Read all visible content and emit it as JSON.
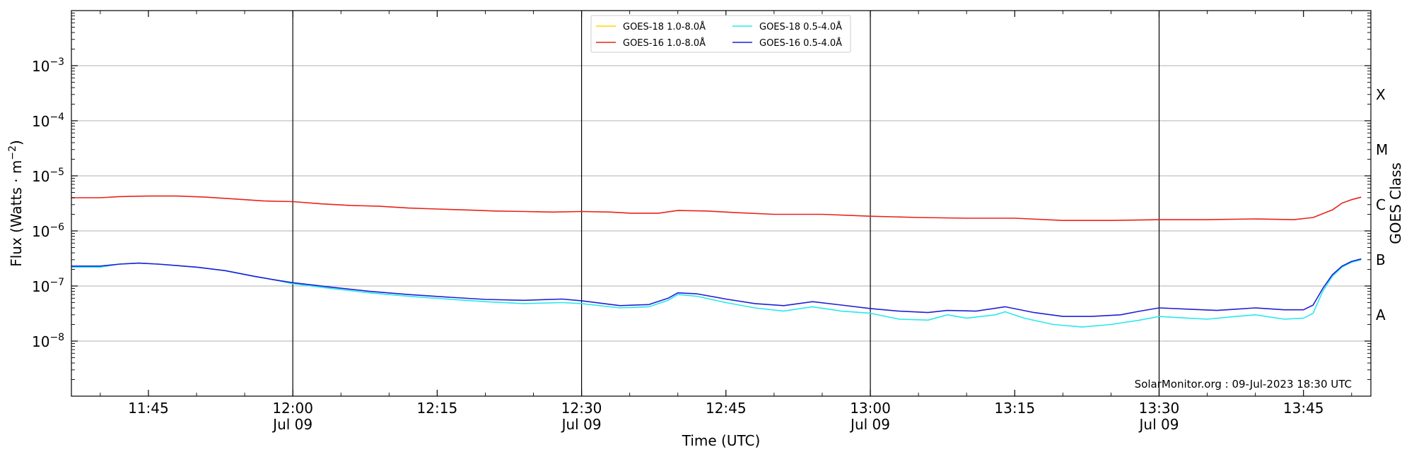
{
  "chart_data": {
    "type": "line",
    "xlabel": "Time (UTC)",
    "ylabel": "Flux (Watts · m",
    "ylabel_sup": "−2",
    "ylabel_close": ")",
    "right_label": "GOES Class",
    "credit": "SolarMonitor.org : 09-Jul-2023 18:30 UTC",
    "y_scale": "log",
    "ylim": [
      1e-09,
      0.01
    ],
    "xlim": [
      "11:37",
      "13:52"
    ],
    "grid": "horizontal at decades",
    "legend_position": "top-center",
    "x_ticks": [
      {
        "time": "11:45",
        "label": "11:45",
        "sub": ""
      },
      {
        "time": "12:00",
        "label": "12:00",
        "sub": "Jul 09"
      },
      {
        "time": "12:15",
        "label": "12:15",
        "sub": ""
      },
      {
        "time": "12:30",
        "label": "12:30",
        "sub": "Jul 09"
      },
      {
        "time": "12:45",
        "label": "12:45",
        "sub": ""
      },
      {
        "time": "13:00",
        "label": "13:00",
        "sub": "Jul 09"
      },
      {
        "time": "13:15",
        "label": "13:15",
        "sub": ""
      },
      {
        "time": "13:30",
        "label": "13:30",
        "sub": "Jul 09"
      },
      {
        "time": "13:45",
        "label": "13:45",
        "sub": ""
      }
    ],
    "vertical_lines": [
      "12:00",
      "12:30",
      "13:00",
      "13:30"
    ],
    "y_ticks": [
      {
        "value": 1e-08,
        "base": "10",
        "exp": "−8"
      },
      {
        "value": 1e-07,
        "base": "10",
        "exp": "−7"
      },
      {
        "value": 1e-06,
        "base": "10",
        "exp": "−6"
      },
      {
        "value": 1e-05,
        "base": "10",
        "exp": "−5"
      },
      {
        "value": 0.0001,
        "base": "10",
        "exp": "−4"
      },
      {
        "value": 0.001,
        "base": "10",
        "exp": "−3"
      }
    ],
    "goes_classes": [
      {
        "label": "A",
        "value": 3e-08
      },
      {
        "label": "B",
        "value": 3e-07
      },
      {
        "label": "C",
        "value": 3e-06
      },
      {
        "label": "M",
        "value": 3e-05
      },
      {
        "label": "X",
        "value": 0.0003
      }
    ],
    "series": [
      {
        "name": "GOES-18 1.0-8.0Å",
        "color": "#ffd700",
        "points": []
      },
      {
        "name": "GOES-16 1.0-8.0Å",
        "color": "#e8231a",
        "points": [
          [
            "11:37",
            4e-06
          ],
          [
            "11:40",
            4e-06
          ],
          [
            "11:42",
            4.2e-06
          ],
          [
            "11:45",
            4.3e-06
          ],
          [
            "11:48",
            4.3e-06
          ],
          [
            "11:51",
            4.1e-06
          ],
          [
            "11:54",
            3.8e-06
          ],
          [
            "11:57",
            3.5e-06
          ],
          [
            "12:00",
            3.4e-06
          ],
          [
            "12:03",
            3.1e-06
          ],
          [
            "12:06",
            2.9e-06
          ],
          [
            "12:09",
            2.8e-06
          ],
          [
            "12:12",
            2.6e-06
          ],
          [
            "12:15",
            2.5e-06
          ],
          [
            "12:18",
            2.4e-06
          ],
          [
            "12:21",
            2.3e-06
          ],
          [
            "12:24",
            2.25e-06
          ],
          [
            "12:27",
            2.2e-06
          ],
          [
            "12:30",
            2.25e-06
          ],
          [
            "12:33",
            2.2e-06
          ],
          [
            "12:35",
            2.1e-06
          ],
          [
            "12:38",
            2.1e-06
          ],
          [
            "12:40",
            2.35e-06
          ],
          [
            "12:43",
            2.3e-06
          ],
          [
            "12:46",
            2.15e-06
          ],
          [
            "12:50",
            2e-06
          ],
          [
            "12:55",
            2e-06
          ],
          [
            "13:00",
            1.85e-06
          ],
          [
            "13:05",
            1.75e-06
          ],
          [
            "13:10",
            1.7e-06
          ],
          [
            "13:15",
            1.7e-06
          ],
          [
            "13:20",
            1.55e-06
          ],
          [
            "13:25",
            1.55e-06
          ],
          [
            "13:30",
            1.6e-06
          ],
          [
            "13:35",
            1.6e-06
          ],
          [
            "13:40",
            1.65e-06
          ],
          [
            "13:44",
            1.6e-06
          ],
          [
            "13:46",
            1.75e-06
          ],
          [
            "13:48",
            2.4e-06
          ],
          [
            "13:49",
            3.2e-06
          ],
          [
            "13:50",
            3.7e-06
          ],
          [
            "13:51",
            4.1e-06
          ]
        ]
      },
      {
        "name": "GOES-18 0.5-4.0Å",
        "color": "#27e8ee",
        "points": [
          [
            "11:37",
            2.2e-07
          ],
          [
            "11:40",
            2.2e-07
          ],
          [
            "11:42",
            2.5e-07
          ],
          [
            "11:44",
            2.6e-07
          ],
          [
            "11:46",
            2.5e-07
          ],
          [
            "11:50",
            2.2e-07
          ],
          [
            "11:53",
            1.9e-07
          ],
          [
            "11:56",
            1.5e-07
          ],
          [
            "11:58",
            1.3e-07
          ],
          [
            "12:00",
            1.1e-07
          ],
          [
            "12:04",
            9e-08
          ],
          [
            "12:08",
            7.5e-08
          ],
          [
            "12:12",
            6.5e-08
          ],
          [
            "12:16",
            5.8e-08
          ],
          [
            "12:20",
            5.2e-08
          ],
          [
            "12:24",
            4.8e-08
          ],
          [
            "12:28",
            5e-08
          ],
          [
            "12:30",
            4.8e-08
          ],
          [
            "12:34",
            4e-08
          ],
          [
            "12:37",
            4.2e-08
          ],
          [
            "12:39",
            5.5e-08
          ],
          [
            "12:40",
            7e-08
          ],
          [
            "12:42",
            6.5e-08
          ],
          [
            "12:45",
            5e-08
          ],
          [
            "12:48",
            4e-08
          ],
          [
            "12:51",
            3.5e-08
          ],
          [
            "12:54",
            4.2e-08
          ],
          [
            "12:57",
            3.5e-08
          ],
          [
            "13:00",
            3.2e-08
          ],
          [
            "13:03",
            2.5e-08
          ],
          [
            "13:06",
            2.4e-08
          ],
          [
            "13:08",
            3e-08
          ],
          [
            "13:10",
            2.6e-08
          ],
          [
            "13:13",
            3e-08
          ],
          [
            "13:14",
            3.4e-08
          ],
          [
            "13:16",
            2.6e-08
          ],
          [
            "13:19",
            2e-08
          ],
          [
            "13:22",
            1.8e-08
          ],
          [
            "13:25",
            2e-08
          ],
          [
            "13:28",
            2.4e-08
          ],
          [
            "13:30",
            2.8e-08
          ],
          [
            "13:33",
            2.6e-08
          ],
          [
            "13:35",
            2.5e-08
          ],
          [
            "13:38",
            2.8e-08
          ],
          [
            "13:40",
            3e-08
          ],
          [
            "13:43",
            2.5e-08
          ],
          [
            "13:45",
            2.6e-08
          ],
          [
            "13:46",
            3.2e-08
          ],
          [
            "13:47",
            8e-08
          ],
          [
            "13:48",
            1.5e-07
          ],
          [
            "13:49",
            2.2e-07
          ],
          [
            "13:50",
            2.7e-07
          ],
          [
            "13:51",
            3e-07
          ]
        ]
      },
      {
        "name": "GOES-16 0.5-4.0Å",
        "color": "#1f1fd6",
        "points": [
          [
            "11:37",
            2.3e-07
          ],
          [
            "11:40",
            2.3e-07
          ],
          [
            "11:42",
            2.5e-07
          ],
          [
            "11:44",
            2.6e-07
          ],
          [
            "11:46",
            2.5e-07
          ],
          [
            "11:50",
            2.2e-07
          ],
          [
            "11:53",
            1.9e-07
          ],
          [
            "11:56",
            1.5e-07
          ],
          [
            "11:58",
            1.3e-07
          ],
          [
            "12:00",
            1.15e-07
          ],
          [
            "12:04",
            9.5e-08
          ],
          [
            "12:08",
            8e-08
          ],
          [
            "12:12",
            7e-08
          ],
          [
            "12:16",
            6.3e-08
          ],
          [
            "12:20",
            5.7e-08
          ],
          [
            "12:24",
            5.5e-08
          ],
          [
            "12:28",
            5.8e-08
          ],
          [
            "12:30",
            5.4e-08
          ],
          [
            "12:34",
            4.4e-08
          ],
          [
            "12:37",
            4.6e-08
          ],
          [
            "12:39",
            6e-08
          ],
          [
            "12:40",
            7.5e-08
          ],
          [
            "12:42",
            7.2e-08
          ],
          [
            "12:45",
            5.8e-08
          ],
          [
            "12:48",
            4.8e-08
          ],
          [
            "12:51",
            4.4e-08
          ],
          [
            "12:54",
            5.2e-08
          ],
          [
            "12:57",
            4.5e-08
          ],
          [
            "13:00",
            3.9e-08
          ],
          [
            "13:03",
            3.5e-08
          ],
          [
            "13:06",
            3.3e-08
          ],
          [
            "13:08",
            3.6e-08
          ],
          [
            "13:11",
            3.5e-08
          ],
          [
            "13:14",
            4.2e-08
          ],
          [
            "13:17",
            3.3e-08
          ],
          [
            "13:20",
            2.8e-08
          ],
          [
            "13:23",
            2.8e-08
          ],
          [
            "13:26",
            3e-08
          ],
          [
            "13:28",
            3.5e-08
          ],
          [
            "13:30",
            4e-08
          ],
          [
            "13:33",
            3.8e-08
          ],
          [
            "13:36",
            3.6e-08
          ],
          [
            "13:38",
            3.8e-08
          ],
          [
            "13:40",
            4e-08
          ],
          [
            "13:43",
            3.7e-08
          ],
          [
            "13:45",
            3.7e-08
          ],
          [
            "13:46",
            4.5e-08
          ],
          [
            "13:47",
            9e-08
          ],
          [
            "13:48",
            1.6e-07
          ],
          [
            "13:49",
            2.3e-07
          ],
          [
            "13:50",
            2.8e-07
          ],
          [
            "13:51",
            3.1e-07
          ]
        ]
      }
    ]
  }
}
